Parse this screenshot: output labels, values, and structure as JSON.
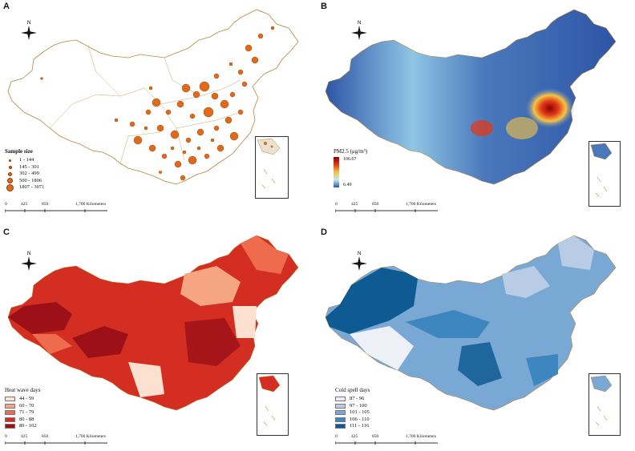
{
  "panels": {
    "a": {
      "letter": "A",
      "legend_title": "Sample size",
      "legend_items": [
        "1 - 144",
        "145 - 301",
        "302 - 499",
        "500 - 1806",
        "1807 - 3071"
      ]
    },
    "b": {
      "letter": "B",
      "legend_title": "PM2.5 (μg/m³)",
      "legend_max": "106.67",
      "legend_min": "6.49"
    },
    "c": {
      "letter": "C",
      "legend_title": "Heat wave days",
      "legend_items": [
        {
          "label": "44 - 59",
          "color": "#fce0d0"
        },
        {
          "label": "60 - 70",
          "color": "#f6a582"
        },
        {
          "label": "71 - 79",
          "color": "#ee6b4d"
        },
        {
          "label": "80 - 88",
          "color": "#d42e23"
        },
        {
          "label": "89 - 102",
          "color": "#9d1018"
        }
      ]
    },
    "d": {
      "letter": "D",
      "legend_title": "Cold spell days",
      "legend_items": [
        {
          "label": "87 - 96",
          "color": "#eef0f8"
        },
        {
          "label": "97 - 100",
          "color": "#b8cce6"
        },
        {
          "label": "101 - 105",
          "color": "#7aa8d4"
        },
        {
          "label": "106 - 110",
          "color": "#3d86c0"
        },
        {
          "label": "111 - 116",
          "color": "#0e5a92"
        }
      ]
    }
  },
  "scale_bar": {
    "ticks": [
      "0",
      "425",
      "850",
      "1,700 Kilometers"
    ]
  },
  "north_label": "N",
  "colors": {
    "border": "#b08a3a",
    "sample_fill": "#e06a1a",
    "pm_low": "#2e55a6",
    "pm_high": "#8b0000"
  }
}
